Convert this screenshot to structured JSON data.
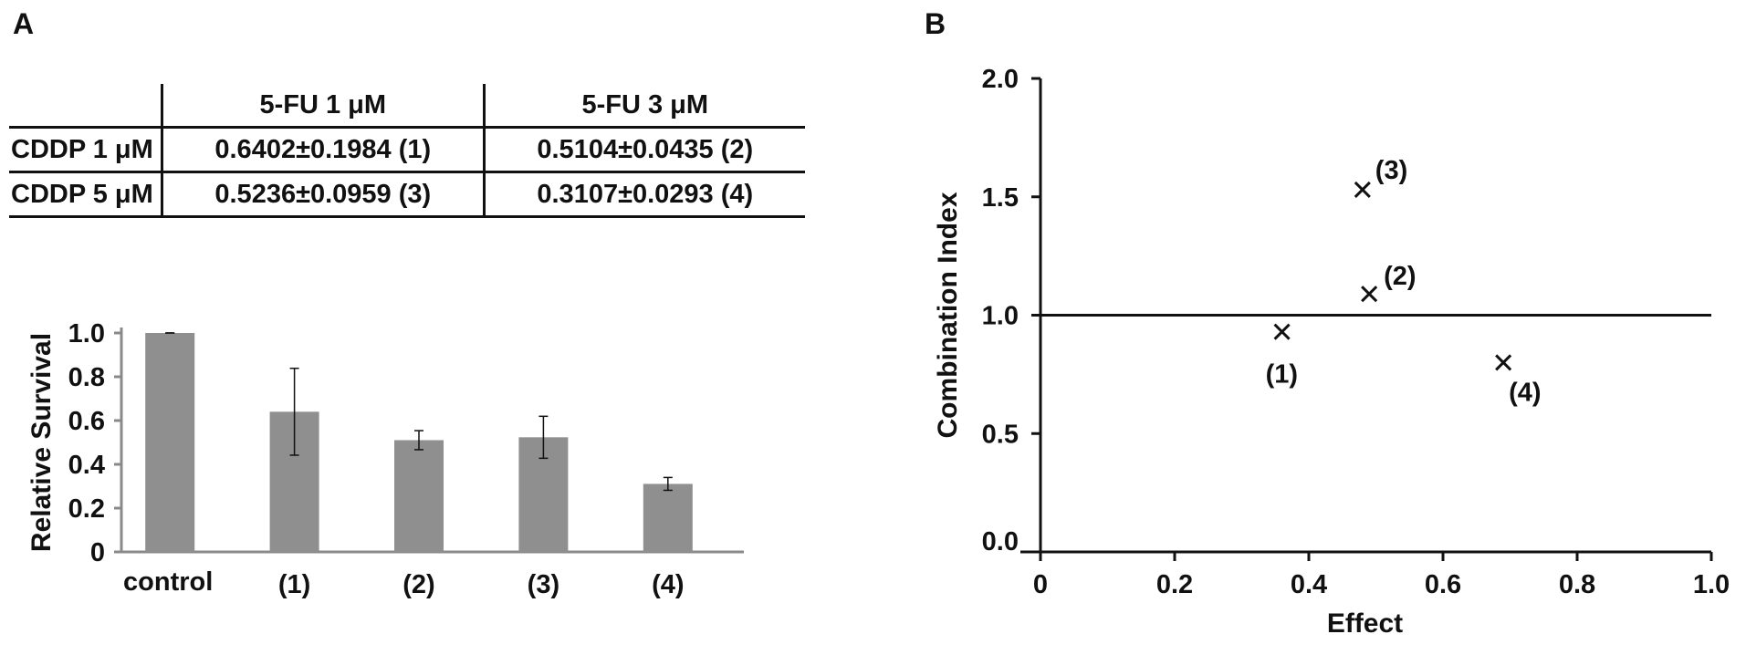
{
  "panels": {
    "a_label": "A",
    "b_label": "B"
  },
  "table": {
    "col_headers": [
      "5-FU 1 μM",
      "5-FU 3 μM"
    ],
    "rows": [
      {
        "label": "CDDP 1 μM",
        "cells": [
          "0.6402±0.1984 (1)",
          "0.5104±0.0435 (2)"
        ]
      },
      {
        "label": "CDDP 5 μM",
        "cells": [
          "0.5236±0.0959 (3)",
          "0.3107±0.0293 (4)"
        ]
      }
    ]
  },
  "chart_data": [
    {
      "type": "bar",
      "categories": [
        "control",
        "(1)",
        "(2)",
        "(3)",
        "(4)"
      ],
      "values": [
        1.0,
        0.6402,
        0.5104,
        0.5236,
        0.3107
      ],
      "errors": [
        0.0,
        0.1984,
        0.0435,
        0.0959,
        0.0293
      ],
      "ylabel": "Relative Survival",
      "xlabel": "",
      "ylim": [
        0,
        1.0
      ],
      "yticks": [
        "0",
        "0.2",
        "0.4",
        "0.6",
        "0.8",
        "1.0"
      ],
      "bar_color": "#8f8f8f"
    },
    {
      "type": "scatter",
      "xlabel": "Effect",
      "ylabel": "Combination Index",
      "xlim": [
        0,
        1.0
      ],
      "ylim": [
        0,
        2.0
      ],
      "xticks": [
        "0",
        "0.2",
        "0.4",
        "0.6",
        "0.8",
        "1.0"
      ],
      "yticks": [
        "0.0",
        "0.5",
        "1.0",
        "1.5",
        "2.0"
      ],
      "reference_line_y": 1.0,
      "points": [
        {
          "x": 0.36,
          "y": 0.93,
          "label": "(1)"
        },
        {
          "x": 0.49,
          "y": 1.09,
          "label": "(2)"
        },
        {
          "x": 0.48,
          "y": 1.53,
          "label": "(3)"
        },
        {
          "x": 0.69,
          "y": 0.8,
          "label": "(4)"
        }
      ]
    }
  ]
}
